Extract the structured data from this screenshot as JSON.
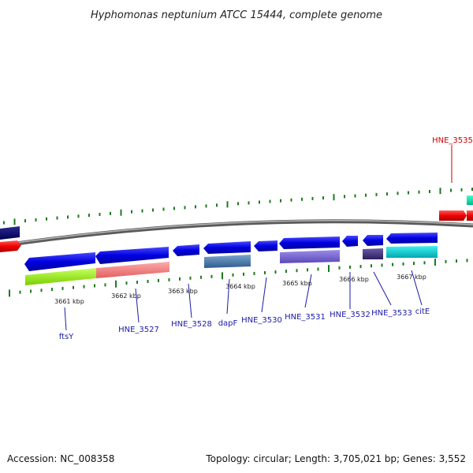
{
  "title": "Hyphomonas neptunium ATCC 15444, complete genome",
  "footer": {
    "accession": "Accession: NC_008358",
    "summary": "Topology: circular; Length: 3,705,021 bp; Genes: 3,552"
  },
  "colors": {
    "gene_label": "#1a1aa6",
    "highlight_label": "#cc0000",
    "tick": "#1e7a1e",
    "backbone": "#8c8c8c"
  },
  "ruler": {
    "labels": [
      "3661 kbp",
      "3662 kbp",
      "3663 kbp",
      "3664 kbp",
      "3665 kbp",
      "3666 kbp",
      "3667 kbp"
    ]
  },
  "gene_labels": [
    {
      "id": "ftsY",
      "text": "ftsY"
    },
    {
      "id": "HNE_3527",
      "text": "HNE_3527"
    },
    {
      "id": "HNE_3528",
      "text": "HNE_3528"
    },
    {
      "id": "dapF",
      "text": "dapF"
    },
    {
      "id": "HNE_3530",
      "text": "HNE_3530"
    },
    {
      "id": "HNE_3531",
      "text": "HNE_3531"
    },
    {
      "id": "HNE_3532",
      "text": "HNE_3532"
    },
    {
      "id": "HNE_3533",
      "text": "HNE_3533"
    },
    {
      "id": "citE",
      "text": "citE"
    }
  ],
  "highlight_label": {
    "id": "HNE_3535",
    "text": "HNE_3535"
  }
}
